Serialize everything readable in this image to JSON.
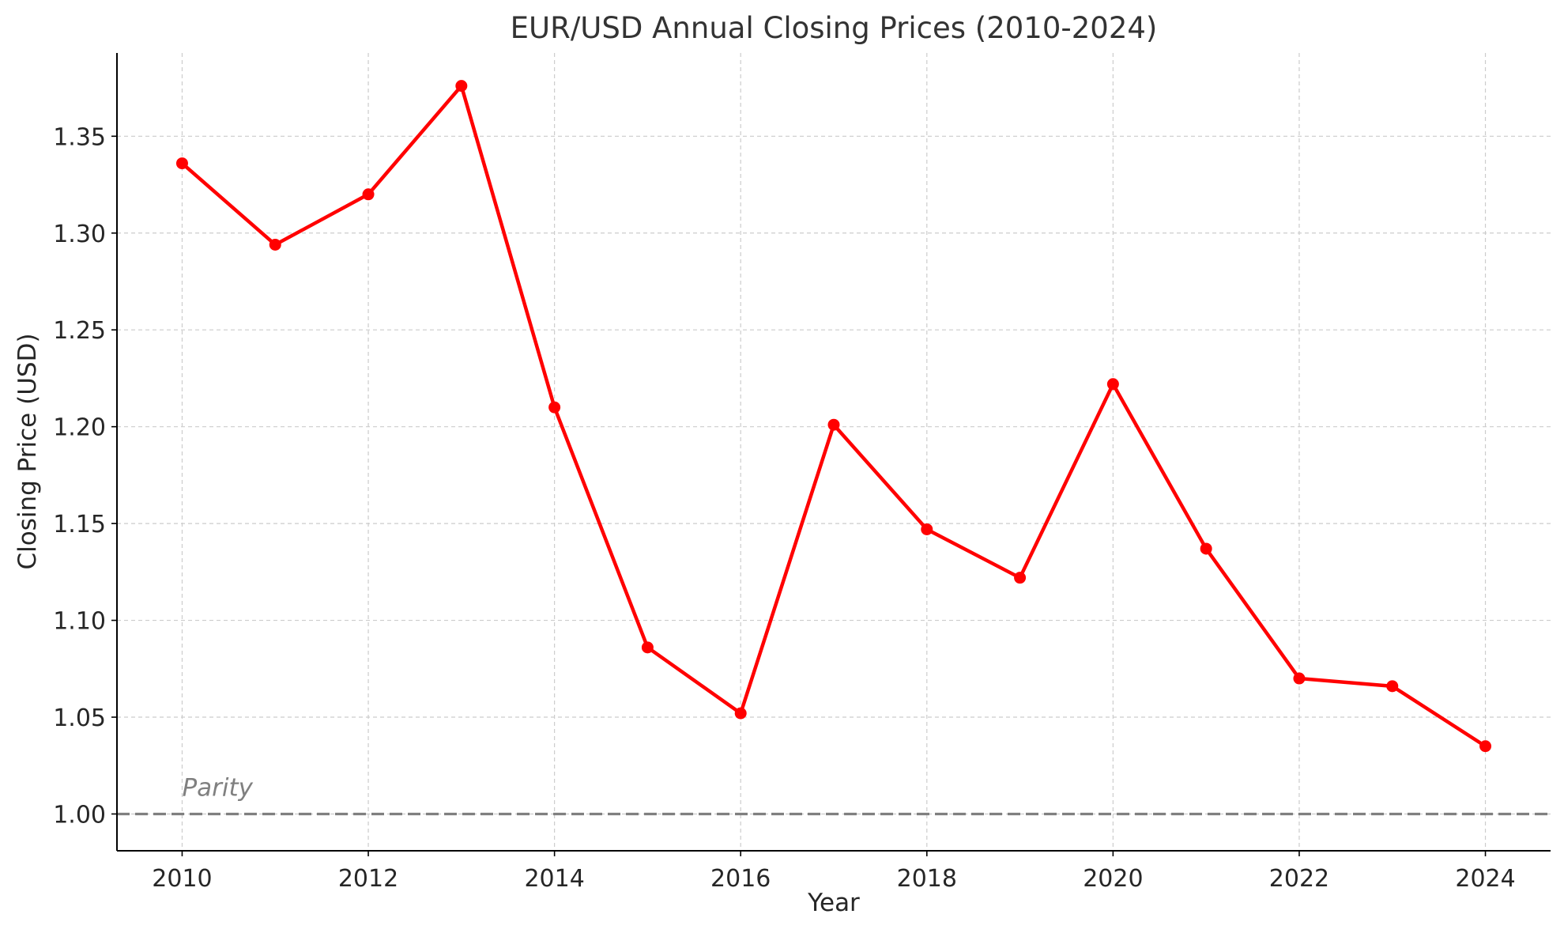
{
  "chart_data": {
    "type": "line",
    "title": "EUR/USD Annual Closing Prices (2010-2024)",
    "xlabel": "Year",
    "ylabel": "Closing Price (USD)",
    "x": [
      2010,
      2011,
      2012,
      2013,
      2014,
      2015,
      2016,
      2017,
      2018,
      2019,
      2020,
      2021,
      2022,
      2023,
      2024
    ],
    "series": [
      {
        "color": "#ff0000",
        "marker": "circle",
        "values": [
          1.336,
          1.294,
          1.32,
          1.376,
          1.21,
          1.086,
          1.052,
          1.201,
          1.147,
          1.122,
          1.222,
          1.137,
          1.07,
          1.066,
          1.035
        ]
      }
    ],
    "xlim": [
      2009.3,
      2024.7
    ],
    "ylim": [
      0.981,
      1.393
    ],
    "xticks": [
      2010,
      2012,
      2014,
      2016,
      2018,
      2020,
      2022,
      2024
    ],
    "xtick_labels": [
      "2010",
      "2012",
      "2014",
      "2016",
      "2018",
      "2020",
      "2022",
      "2024"
    ],
    "yticks": [
      1.0,
      1.05,
      1.1,
      1.15,
      1.2,
      1.25,
      1.3,
      1.35
    ],
    "ytick_labels": [
      "1.00",
      "1.05",
      "1.10",
      "1.15",
      "1.20",
      "1.25",
      "1.30",
      "1.35"
    ],
    "grid": true,
    "reference_line": {
      "y": 1.0,
      "label": "Parity",
      "label_x": 2010,
      "color": "#808080",
      "style": "dashed"
    }
  }
}
